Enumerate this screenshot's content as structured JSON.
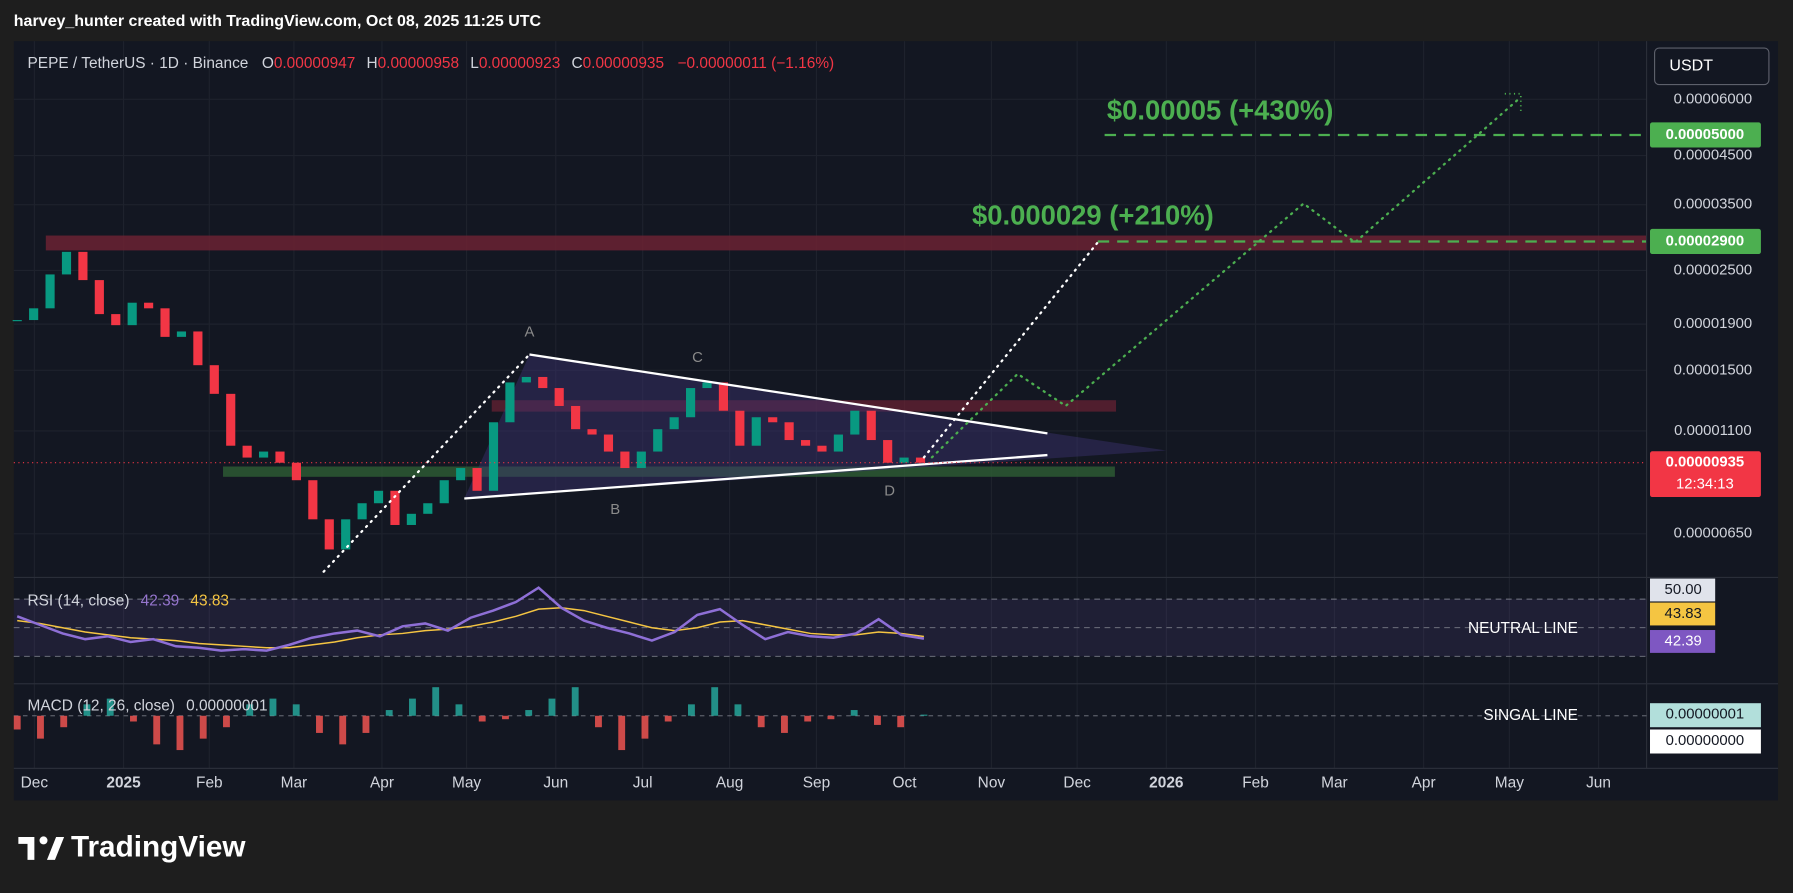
{
  "header": {
    "credit": "harvey_hunter created with TradingView.com, Oct 08, 2025 11:25 UTC"
  },
  "symbol_bar": {
    "symbol": "PEPE / TetherUS · 1D · Binance",
    "ohlc": [
      {
        "key": "O",
        "value": "0.00000947"
      },
      {
        "key": "H",
        "value": "0.00000958"
      },
      {
        "key": "L",
        "value": "0.00000923"
      },
      {
        "key": "C",
        "value": "0.00000935"
      }
    ],
    "change": "−0.00000011 (−1.16%)"
  },
  "currency_button": "USDT",
  "chart_data": {
    "type": "candlestick",
    "log_scale": true,
    "grid": true,
    "up_color": "#089981",
    "down_color": "#f23645",
    "closes": [
      1.94e-05,
      2.06e-05,
      2.45e-05,
      2.75e-05,
      2.38e-05,
      2e-05,
      1.89e-05,
      2.12e-05,
      2.06e-05,
      1.78e-05,
      1.83e-05,
      1.54e-05,
      1.33e-05,
      1.02e-05,
      9.6e-06,
      9.9e-06,
      9.35e-06,
      8.55e-06,
      7e-06,
      6e-06,
      7e-06,
      7.6e-06,
      8.1e-06,
      6.8e-06,
      7.2e-06,
      7.6e-06,
      8.55e-06,
      9.1e-06,
      8.1e-06,
      1.15e-05,
      1.41e-05,
      1.45e-05,
      1.37e-05,
      1.25e-05,
      1.11e-05,
      1.08e-05,
      9.9e-06,
      9.1e-06,
      9.9e-06,
      1.11e-05,
      1.18e-05,
      1.37e-05,
      1.41e-05,
      1.22e-05,
      1.02e-05,
      1.18e-05,
      1.15e-05,
      1.05e-05,
      1.02e-05,
      9.9e-06,
      1.08e-05,
      1.22e-05,
      1.05e-05,
      9.35e-06,
      9.6e-06,
      9.35e-06
    ],
    "ylim": [
      5.2e-06,
      8.08e-05
    ],
    "yticks": [
      {
        "value": 6e-05,
        "label": "0.00006000"
      },
      {
        "value": 4.5e-05,
        "label": "0.00004500"
      },
      {
        "value": 3.5e-05,
        "label": "0.00003500"
      },
      {
        "value": 2.5e-05,
        "label": "0.00002500"
      },
      {
        "value": 1.9e-05,
        "label": "0.00001900"
      },
      {
        "value": 1.5e-05,
        "label": "0.00001500"
      },
      {
        "value": 1.1e-05,
        "label": "0.00001100"
      },
      {
        "value": 6.5e-06,
        "label": "0.00000650"
      }
    ],
    "xticks": [
      "Dec",
      "2025",
      "Feb",
      "Mar",
      "Apr",
      "May",
      "Jun",
      "Jul",
      "Aug",
      "Sep",
      "Oct",
      "Nov",
      "Dec",
      "2026",
      "Feb",
      "Mar",
      "Apr",
      "May",
      "Jun"
    ],
    "current_price": {
      "value": 9.35e-06,
      "label": "0.00000935"
    },
    "countdown": "12:34:13",
    "targets": [
      {
        "value": 5e-05,
        "label": "0.00005000",
        "annotation": "$0.00005 (+430%)"
      },
      {
        "value": 2.9e-05,
        "label": "0.00002900",
        "annotation": "$0.000029 (+210%)"
      }
    ],
    "pattern_points": [
      "A",
      "B",
      "C",
      "D"
    ]
  },
  "rsi": {
    "legend": "RSI (14, close)",
    "rsi_last": 42.39,
    "ma_last": 43.83,
    "axis_label": {
      "value": 50,
      "label": "50.00"
    },
    "guides": [
      70,
      50,
      30
    ],
    "note": "NEUTRAL LINE",
    "values": [
      58,
      52,
      46,
      42,
      44,
      40,
      42,
      37,
      36,
      34,
      35,
      34,
      38,
      43,
      46,
      48,
      44,
      51,
      53,
      48,
      57,
      62,
      68,
      78,
      64,
      55,
      50,
      46,
      41,
      47,
      59,
      63,
      52,
      42,
      47,
      44,
      43,
      46,
      56,
      45,
      42.39
    ],
    "ma": [
      55,
      53,
      50,
      47,
      45,
      43,
      42,
      41,
      39,
      38,
      37,
      36,
      36,
      38,
      40,
      43,
      45,
      46,
      48,
      49,
      51,
      54,
      58,
      63,
      64,
      62,
      58,
      54,
      50,
      48,
      50,
      54,
      55,
      52,
      49,
      46,
      45,
      45,
      47,
      46,
      43.83
    ]
  },
  "macd": {
    "legend": "MACD (12, 26, close)",
    "value": {
      "value": 1e-08,
      "label": "0.00000001"
    },
    "axis_labels": [
      {
        "value": 1e-08,
        "label": "0.00000001"
      },
      {
        "value": 0,
        "label": "0.00000000"
      }
    ],
    "note": "SINGAL LINE",
    "histogram": [
      -1.2e-07,
      -2e-07,
      -1e-07,
      1e-07,
      1.5e-07,
      -5e-08,
      -2.5e-07,
      -3e-07,
      -2e-07,
      -1e-07,
      1e-07,
      1.5e-07,
      1e-07,
      -1.5e-07,
      -2.5e-07,
      -1.5e-07,
      5e-08,
      1.5e-07,
      2.5e-07,
      1e-07,
      -5e-08,
      -3e-08,
      5e-08,
      1.5e-07,
      2.5e-07,
      -1e-07,
      -3e-07,
      -2e-07,
      -5e-08,
      1e-07,
      2.5e-07,
      1e-07,
      -1e-07,
      -1.5e-07,
      -5e-08,
      -3e-08,
      5e-08,
      -8e-08,
      -1e-07,
      1e-08
    ]
  },
  "footer": {
    "logo": "TradingView"
  }
}
